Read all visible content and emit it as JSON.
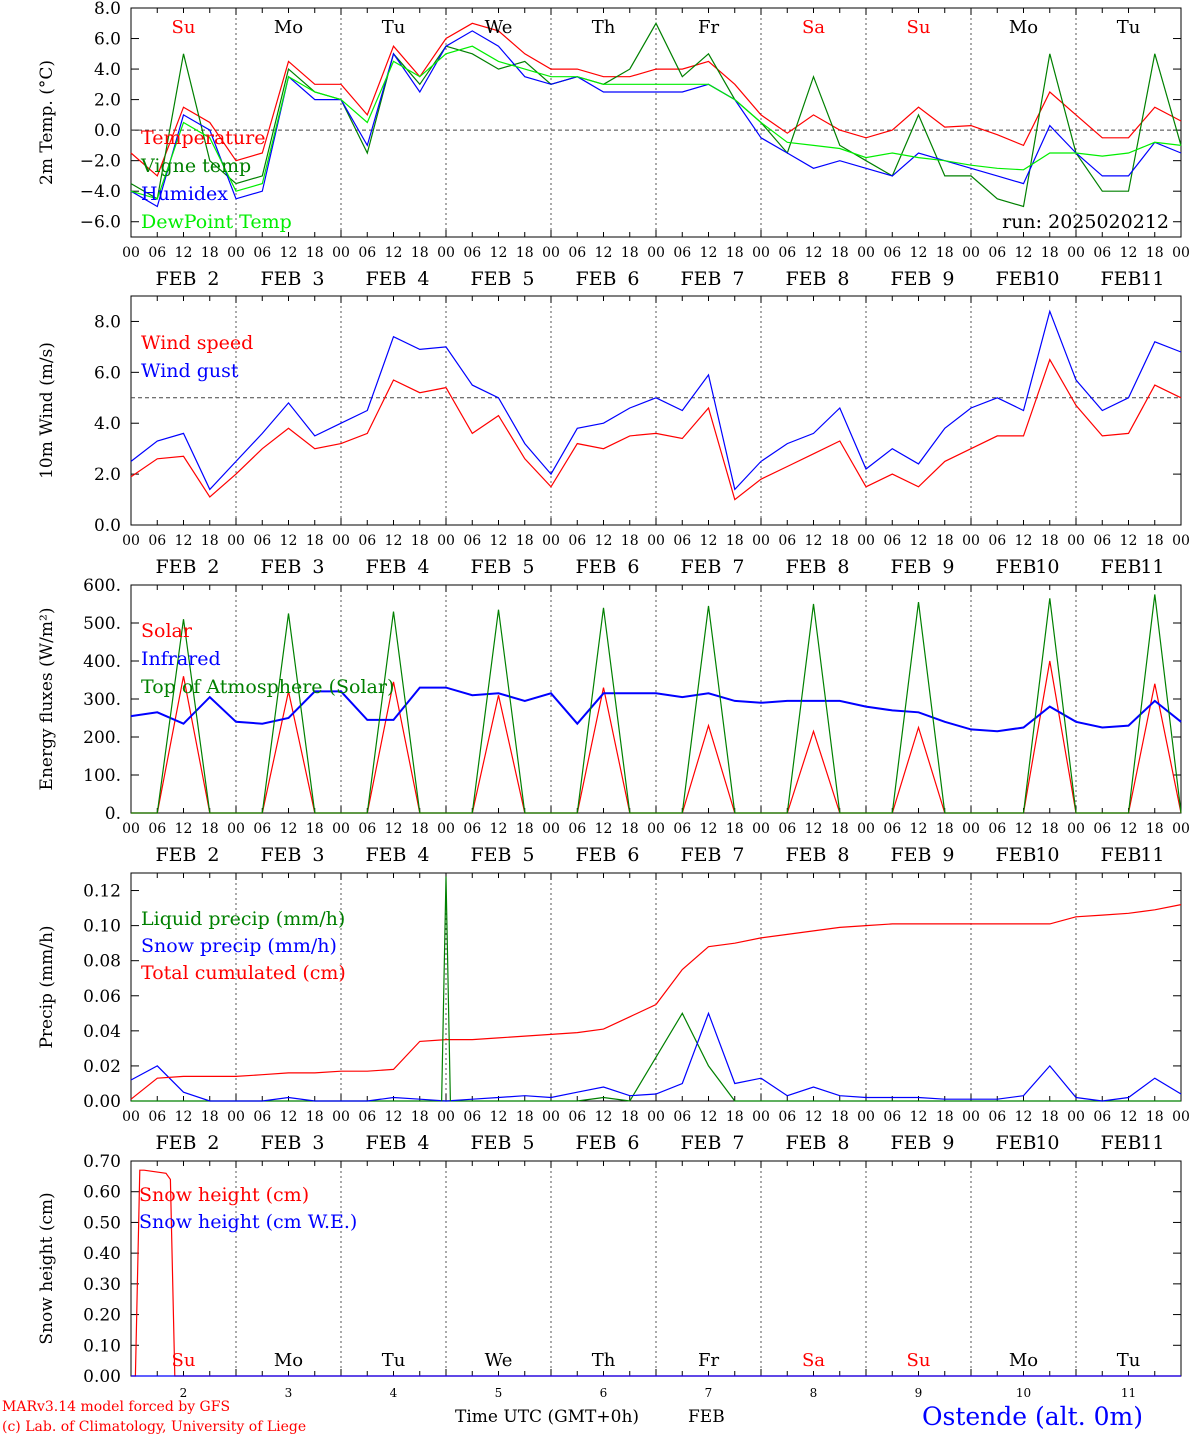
{
  "run_label": "run: 2025020212",
  "x_tick_hours": [
    "00",
    "06",
    "12",
    "18"
  ],
  "days": [
    {
      "abbr": "Su",
      "date": "2",
      "weekend": true
    },
    {
      "abbr": "Mo",
      "date": "3",
      "weekend": false
    },
    {
      "abbr": "Tu",
      "date": "4",
      "weekend": false
    },
    {
      "abbr": "We",
      "date": "5",
      "weekend": false
    },
    {
      "abbr": "Th",
      "date": "6",
      "weekend": false
    },
    {
      "abbr": "Fr",
      "date": "7",
      "weekend": false
    },
    {
      "abbr": "Sa",
      "date": "8",
      "weekend": true
    },
    {
      "abbr": "Su",
      "date": "9",
      "weekend": true
    },
    {
      "abbr": "Mo",
      "date": "10",
      "weekend": false
    },
    {
      "abbr": "Tu",
      "date": "11",
      "weekend": false
    }
  ],
  "month_label": "FEB",
  "footer": {
    "model": "MARv3.14 model forced by GFS",
    "credit": "(c) Lab. of Climatology, University of Liege",
    "xlabel": "Time UTC (GMT+0h)",
    "month": "FEB",
    "station": "Ostende (alt. 0m)"
  },
  "colors": {
    "red": "#ff0000",
    "green": "#008000",
    "blue": "#0000ff",
    "lightgreen": "#00ee00",
    "weekend": "#ff0000"
  },
  "chart_data": [
    {
      "type": "line",
      "ylabel": "2m Temp. (°C)",
      "ylim": [
        -7,
        8
      ],
      "yticks": [
        "8.0",
        "6.0",
        "4.0",
        "2.0",
        "0.0",
        "−2.0",
        "−4.0",
        "−6.0"
      ],
      "ytick_values": [
        8,
        6,
        4,
        2,
        0,
        -2,
        -4,
        -6
      ],
      "refline": 0,
      "x_hours": [
        0,
        6,
        12,
        18,
        24,
        30,
        36,
        42,
        48,
        54,
        60,
        66,
        72,
        78,
        84,
        90,
        96,
        102,
        108,
        114,
        120,
        126,
        132,
        138,
        144,
        150,
        156,
        162,
        168,
        174,
        180,
        186,
        192,
        198,
        204,
        210,
        216,
        222,
        228,
        234,
        240
      ],
      "series": [
        {
          "name": "Temperature",
          "color": "red",
          "values": [
            -1.5,
            -3.0,
            1.5,
            0.5,
            -2.0,
            -1.5,
            4.5,
            3.0,
            3.0,
            1.0,
            5.5,
            3.5,
            6.0,
            7.0,
            6.5,
            5.0,
            4.0,
            4.0,
            3.5,
            3.5,
            4.0,
            4.0,
            4.5,
            3.0,
            1.0,
            -0.2,
            1.0,
            0.0,
            -0.5,
            0.0,
            1.5,
            0.2,
            0.3,
            -0.3,
            -1.0,
            2.5,
            1.0,
            -0.5,
            -0.5,
            1.5,
            0.6
          ]
        },
        {
          "name": "Vigne temp",
          "color": "green",
          "values": [
            -3.5,
            -4.5,
            5.0,
            -2.0,
            -3.5,
            -3.0,
            4.0,
            2.5,
            2.0,
            -1.5,
            5.0,
            3.0,
            5.5,
            5.0,
            4.0,
            4.5,
            3.0,
            3.5,
            3.0,
            4.0,
            7.0,
            3.5,
            5.0,
            2.0,
            0.5,
            -1.5,
            3.5,
            -1.0,
            -2.0,
            -3.0,
            1.0,
            -3.0,
            -3.0,
            -4.5,
            -5.0,
            5.0,
            -1.5,
            -4.0,
            -4.0,
            5.0,
            -1.0
          ]
        },
        {
          "name": "Humidex",
          "color": "blue",
          "values": [
            -4.0,
            -5.0,
            1.0,
            0.0,
            -4.5,
            -4.0,
            3.5,
            2.0,
            2.0,
            -1.0,
            5.0,
            2.5,
            5.5,
            6.5,
            5.5,
            3.5,
            3.0,
            3.5,
            2.5,
            2.5,
            2.5,
            2.5,
            3.0,
            2.0,
            -0.5,
            -1.5,
            -2.5,
            -2.0,
            -2.5,
            -3.0,
            -1.5,
            -2.0,
            -2.5,
            -3.0,
            -3.5,
            0.3,
            -1.5,
            -3.0,
            -3.0,
            -0.8,
            -1.5
          ]
        },
        {
          "name": "DewPoint Temp",
          "color": "lightgreen",
          "values": [
            -4.0,
            -4.5,
            0.5,
            -0.5,
            -4.0,
            -3.5,
            3.5,
            2.5,
            2.0,
            0.5,
            4.5,
            3.5,
            5.0,
            5.5,
            4.5,
            4.0,
            3.5,
            3.5,
            3.0,
            3.0,
            3.0,
            3.0,
            3.0,
            2.0,
            0.5,
            -0.8,
            -1.0,
            -1.2,
            -1.8,
            -1.5,
            -1.8,
            -2.0,
            -2.3,
            -2.5,
            -2.6,
            -1.5,
            -1.5,
            -1.7,
            -1.5,
            -0.8,
            -1.0
          ]
        }
      ]
    },
    {
      "type": "line",
      "ylabel": "10m Wind (m/s)",
      "ylim": [
        0,
        9
      ],
      "yticks": [
        "8.0",
        "6.0",
        "4.0",
        "2.0",
        "0.0"
      ],
      "ytick_values": [
        8,
        6,
        4,
        2,
        0
      ],
      "refline": 5,
      "x_hours": [
        0,
        6,
        12,
        18,
        24,
        30,
        36,
        42,
        48,
        54,
        60,
        66,
        72,
        78,
        84,
        90,
        96,
        102,
        108,
        114,
        120,
        126,
        132,
        138,
        144,
        150,
        156,
        162,
        168,
        174,
        180,
        186,
        192,
        198,
        204,
        210,
        216,
        222,
        228,
        234,
        240
      ],
      "series": [
        {
          "name": "Wind speed",
          "color": "red",
          "values": [
            1.9,
            2.6,
            2.7,
            1.1,
            2.0,
            3.0,
            3.8,
            3.0,
            3.2,
            3.6,
            5.7,
            5.2,
            5.4,
            3.6,
            4.3,
            2.6,
            1.5,
            3.2,
            3.0,
            3.5,
            3.6,
            3.4,
            4.6,
            1.0,
            1.8,
            2.3,
            2.8,
            3.3,
            1.5,
            2.0,
            1.5,
            2.5,
            3.0,
            3.5,
            3.5,
            6.5,
            4.7,
            3.5,
            3.6,
            5.5,
            5.0
          ]
        },
        {
          "name": "Wind gust",
          "color": "blue",
          "values": [
            2.5,
            3.3,
            3.6,
            1.4,
            2.5,
            3.6,
            4.8,
            3.5,
            4.0,
            4.5,
            7.4,
            6.9,
            7.0,
            5.5,
            5.0,
            3.2,
            2.0,
            3.8,
            4.0,
            4.6,
            5.0,
            4.5,
            5.9,
            1.4,
            2.5,
            3.2,
            3.6,
            4.6,
            2.2,
            3.0,
            2.4,
            3.8,
            4.6,
            5.0,
            4.5,
            8.4,
            5.7,
            4.5,
            5.0,
            7.2,
            6.8
          ]
        }
      ]
    },
    {
      "type": "line",
      "ylabel": "Energy fluxes (W/m²)",
      "ylim": [
        0,
        600
      ],
      "yticks": [
        "600.",
        "500.",
        "400.",
        "300.",
        "200.",
        "100.",
        "0."
      ],
      "ytick_values": [
        600,
        500,
        400,
        300,
        200,
        100,
        0
      ],
      "x_hours": [
        0,
        6,
        12,
        18,
        24,
        30,
        36,
        42,
        48,
        54,
        60,
        66,
        72,
        78,
        84,
        90,
        96,
        102,
        108,
        114,
        120,
        126,
        132,
        138,
        144,
        150,
        156,
        162,
        168,
        174,
        180,
        186,
        192,
        198,
        204,
        210,
        216,
        222,
        228,
        234,
        240
      ],
      "series": [
        {
          "name": "Solar",
          "color": "red",
          "values": [
            0,
            0,
            360,
            0,
            0,
            0,
            320,
            0,
            0,
            0,
            345,
            0,
            0,
            0,
            310,
            0,
            0,
            0,
            330,
            0,
            0,
            0,
            230,
            0,
            0,
            0,
            215,
            0,
            0,
            0,
            225,
            0,
            0,
            0,
            0,
            400,
            0,
            0,
            0,
            340,
            0
          ]
        },
        {
          "name": "Infrared",
          "color": "blue",
          "values": [
            255,
            265,
            235,
            305,
            240,
            235,
            250,
            320,
            320,
            245,
            245,
            330,
            330,
            310,
            315,
            295,
            315,
            235,
            315,
            315,
            315,
            305,
            315,
            295,
            290,
            295,
            295,
            295,
            280,
            270,
            265,
            240,
            220,
            215,
            225,
            280,
            240,
            225,
            230,
            295,
            240
          ]
        },
        {
          "name": "Top of Atmosphere (Solar)",
          "color": "green",
          "values": [
            0,
            0,
            510,
            0,
            0,
            0,
            525,
            0,
            0,
            0,
            530,
            0,
            0,
            0,
            535,
            0,
            0,
            0,
            540,
            0,
            0,
            0,
            545,
            0,
            0,
            0,
            550,
            0,
            0,
            0,
            555,
            0,
            0,
            0,
            0,
            565,
            0,
            0,
            0,
            575,
            0
          ]
        }
      ]
    },
    {
      "type": "line",
      "ylabel": "Precip (mm/h)",
      "ylim": [
        0,
        0.13
      ],
      "yticks": [
        "0.12",
        "0.10",
        "0.08",
        "0.06",
        "0.04",
        "0.02",
        "0.00"
      ],
      "ytick_values": [
        0.12,
        0.1,
        0.08,
        0.06,
        0.04,
        0.02,
        0.0
      ],
      "x_hours": [
        0,
        6,
        12,
        18,
        24,
        30,
        36,
        42,
        48,
        54,
        60,
        66,
        72,
        78,
        84,
        90,
        96,
        102,
        108,
        114,
        120,
        126,
        132,
        138,
        144,
        150,
        156,
        162,
        168,
        174,
        180,
        186,
        192,
        198,
        204,
        210,
        216,
        222,
        228,
        234,
        240
      ],
      "series": [
        {
          "name": "Liquid precip (mm/h)",
          "color": "green",
          "values": [
            0,
            0,
            0,
            0,
            0,
            0,
            0,
            0,
            0,
            0,
            0,
            0,
            0,
            0,
            0,
            0,
            0,
            0,
            0.002,
            0,
            0.025,
            0.05,
            0.02,
            0,
            0,
            0,
            0,
            0,
            0,
            0,
            0,
            0,
            0,
            0,
            0,
            0,
            0,
            0,
            0,
            0,
            0
          ]
        },
        {
          "name": "Snow precip (mm/h)",
          "color": "blue",
          "values": [
            0.012,
            0.02,
            0.005,
            0,
            0,
            0,
            0.002,
            0,
            0,
            0,
            0.002,
            0.001,
            0,
            0.001,
            0.002,
            0.003,
            0.002,
            0.005,
            0.008,
            0.003,
            0.004,
            0.01,
            0.05,
            0.01,
            0.013,
            0.003,
            0.008,
            0.003,
            0.002,
            0.002,
            0.002,
            0.001,
            0.001,
            0.001,
            0.003,
            0.02,
            0.002,
            0,
            0.002,
            0.013,
            0.004
          ]
        },
        {
          "name": "Total cumulated (cm)",
          "color": "red",
          "values": [
            0.001,
            0.013,
            0.014,
            0.014,
            0.014,
            0.015,
            0.016,
            0.016,
            0.017,
            0.017,
            0.018,
            0.034,
            0.035,
            0.035,
            0.036,
            0.037,
            0.038,
            0.039,
            0.041,
            0.048,
            0.055,
            0.075,
            0.088,
            0.09,
            0.093,
            0.095,
            0.097,
            0.099,
            0.1,
            0.101,
            0.101,
            0.101,
            0.101,
            0.101,
            0.101,
            0.101,
            0.105,
            0.106,
            0.107,
            0.109,
            0.112
          ]
        }
      ],
      "spike": {
        "name": "Liquid precip (mm/h)",
        "hour": 72,
        "value": 0.128
      }
    },
    {
      "type": "line",
      "ylabel": "Snow height (cm)",
      "ylim": [
        0,
        0.7
      ],
      "yticks": [
        "0.70",
        "0.60",
        "0.50",
        "0.40",
        "0.30",
        "0.20",
        "0.10",
        "0.00"
      ],
      "ytick_values": [
        0.7,
        0.6,
        0.5,
        0.4,
        0.3,
        0.2,
        0.1,
        0.0
      ],
      "x_hours": [
        0,
        1,
        2,
        3,
        8,
        9,
        10,
        240
      ],
      "series": [
        {
          "name": "Snow height (cm)",
          "color": "red",
          "values": [
            0,
            0,
            0.67,
            0.67,
            0.66,
            0.64,
            0,
            0
          ]
        },
        {
          "name": "Snow height (cm W.E.)",
          "color": "blue",
          "values": [
            0,
            0,
            0,
            0,
            0,
            0,
            0,
            0
          ]
        }
      ]
    }
  ]
}
